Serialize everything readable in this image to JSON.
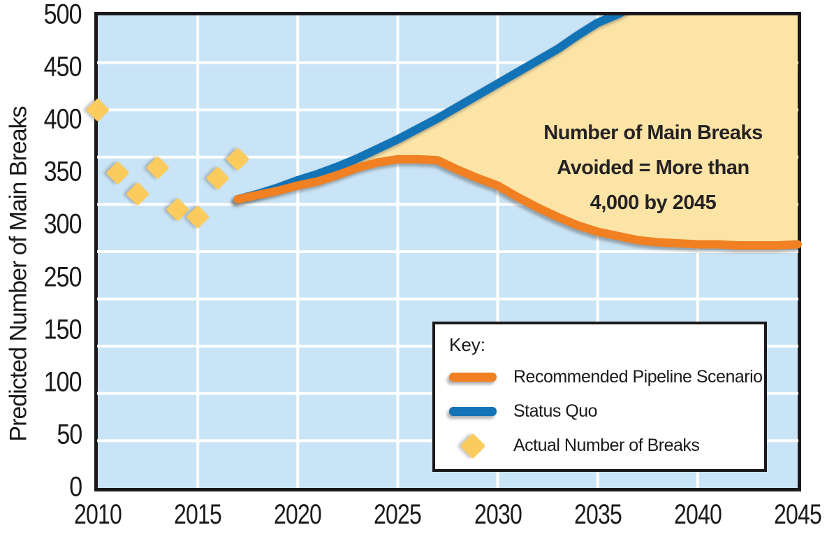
{
  "chart_data": {
    "type": "line",
    "title": "",
    "xlabel": "",
    "ylabel": "Predicted Number of Main Breaks",
    "xlim": [
      2010,
      2045
    ],
    "x_ticks": [
      2010,
      2015,
      2020,
      2025,
      2030,
      2035,
      2040,
      2045
    ],
    "y_tick_labels": [
      "500",
      "450",
      "400",
      "350",
      "300",
      "250",
      "150",
      "100",
      "50",
      "0"
    ],
    "y_axis_note": "labels evenly spaced; value 200 is skipped on the original axis",
    "grid": {
      "horizontal_intervals": 10,
      "vertical_at_years": [
        2015,
        2020,
        2025,
        2030,
        2035,
        2040
      ],
      "color": "#FFFFFF"
    },
    "legend_position": "bottom-right-inside",
    "annotation": {
      "lines": [
        "Number of Main Breaks",
        "Avoided = More than",
        "4,000 by 2045"
      ]
    },
    "legend": {
      "title": "Key:",
      "entries": [
        {
          "label": "Recommended Pipeline Scenario",
          "marker": "line",
          "color": "#F08021"
        },
        {
          "label": "Status Quo",
          "marker": "line",
          "color": "#1274B6"
        },
        {
          "label": "Actual Number of Breaks",
          "marker": "diamond",
          "color": "#FBCC5D"
        }
      ]
    },
    "series": [
      {
        "name": "Recommended Pipeline Scenario",
        "type": "line",
        "color": "#F08021",
        "points": [
          [
            2017,
            325
          ],
          [
            2018,
            329
          ],
          [
            2019,
            333
          ],
          [
            2020,
            338
          ],
          [
            2021,
            342
          ],
          [
            2022,
            348
          ],
          [
            2023,
            355
          ],
          [
            2024,
            360
          ],
          [
            2025,
            363
          ],
          [
            2026,
            363
          ],
          [
            2027,
            362
          ],
          [
            2028,
            353
          ],
          [
            2029,
            345
          ],
          [
            2030,
            338
          ],
          [
            2031,
            327
          ],
          [
            2032,
            317
          ],
          [
            2033,
            308
          ],
          [
            2034,
            300
          ],
          [
            2035,
            294
          ],
          [
            2036,
            290
          ],
          [
            2037,
            286
          ],
          [
            2038,
            284
          ],
          [
            2039,
            283
          ],
          [
            2040,
            282
          ],
          [
            2041,
            282
          ],
          [
            2042,
            281
          ],
          [
            2043,
            281
          ],
          [
            2044,
            281
          ],
          [
            2045,
            282
          ]
        ]
      },
      {
        "name": "Status Quo",
        "type": "line",
        "color": "#1274B6",
        "points": [
          [
            2017,
            325
          ],
          [
            2018,
            330
          ],
          [
            2019,
            336
          ],
          [
            2020,
            343
          ],
          [
            2021,
            349
          ],
          [
            2022,
            356
          ],
          [
            2023,
            364
          ],
          [
            2024,
            373
          ],
          [
            2025,
            382
          ],
          [
            2026,
            392
          ],
          [
            2027,
            402
          ],
          [
            2028,
            413
          ],
          [
            2029,
            424
          ],
          [
            2030,
            435
          ],
          [
            2031,
            446
          ],
          [
            2032,
            457
          ],
          [
            2033,
            468
          ],
          [
            2034,
            481
          ],
          [
            2035,
            493
          ],
          [
            2036,
            501
          ],
          [
            2036.5,
            506
          ]
        ]
      },
      {
        "name": "Actual Number of Breaks",
        "type": "scatter",
        "color": "#FBCC5D",
        "points": [
          [
            2010,
            410
          ],
          [
            2011,
            350
          ],
          [
            2012,
            330
          ],
          [
            2013,
            355
          ],
          [
            2014,
            315
          ],
          [
            2015,
            308
          ],
          [
            2016,
            345
          ],
          [
            2017,
            363
          ]
        ]
      }
    ],
    "avoided_area": {
      "between": [
        "Status Quo",
        "Recommended Pipeline Scenario"
      ],
      "from_year": 2021,
      "fill": "#FBE4A6"
    },
    "colors": {
      "plot_background": "#C9E4F6",
      "gridline": "#FFFFFF",
      "axis_border": "#1B181C",
      "text": "#231F20",
      "avoided_fill": "#FBE4A6"
    }
  }
}
